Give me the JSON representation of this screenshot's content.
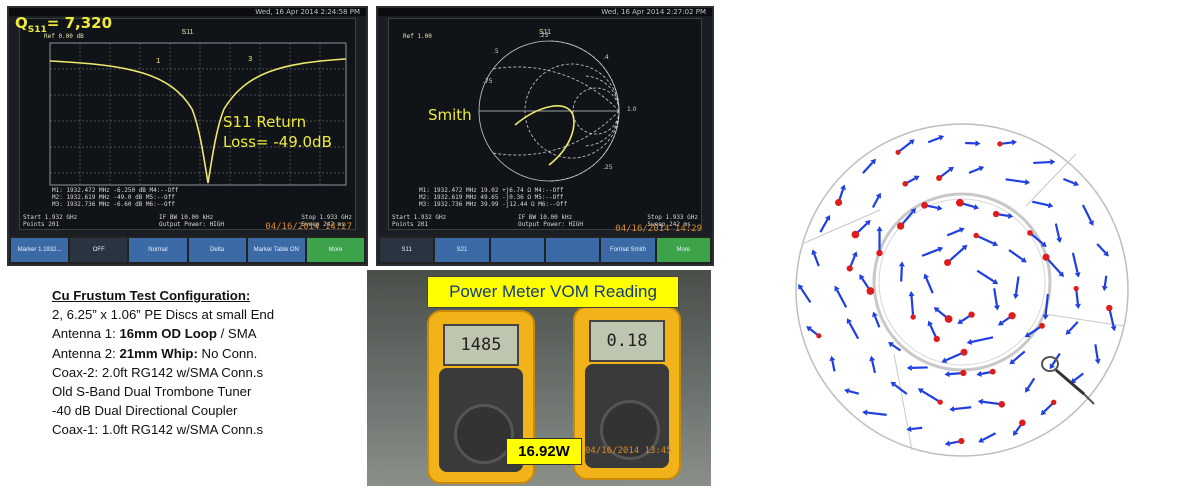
{
  "panel_s11": {
    "q_label": "Q",
    "q_sub": "S11",
    "q_value": "= 7,320",
    "trace_title": "S11",
    "status": "Wed, 16 Apr 2014 2:24:58 PM",
    "ref": "Ref 0.00 dB",
    "return_loss_line1": "S11 Return",
    "return_loss_line2": "Loss= -49.0dB",
    "markers": [
      "M1:  1932.472 MHz  -6.250 dB   M4:--Off",
      "M2:  1932.619 MHz  -49.0 dB    M5:--Off",
      "M3:  1932.736 MHz  -6.60 dB    M6:--Off"
    ],
    "footer_left": "Start 1.932 GHz\nPoints 201",
    "footer_mid": "IF BW 10.00 kHz\nOutput Power: HIGH",
    "footer_right": "Stop 1.933 GHz\nSweep 242 ms",
    "timestamp": "04/16/2014  14:27",
    "softkeys": [
      "Marker 1.1932...",
      "OFF",
      "Normal",
      "Delta",
      "Marker Table ON OFF",
      "More"
    ]
  },
  "panel_smith": {
    "trace_title": "S11",
    "status": "Wed, 16 Apr 2014 2:27:02 PM",
    "ref": "Ref 1.00",
    "label": "Smith",
    "markers": [
      "M1:  1932.472 MHz  19.02 +j6.74 Ω   M4:--Off",
      "M2:  1932.619 MHz  49.65 -j0.36 Ω   M5:--Off",
      "M3:  1932.736 MHz  39.99 -j12.44 Ω  M6:--Off"
    ],
    "footer_left": "Start 1.932 GHz\nPoints 201",
    "footer_mid": "IF BW 10.00 kHz\nOutput Power: HIGH",
    "footer_right": "Stop 1.933 GHz\nSweep 242 ms",
    "timestamp": "04/16/2014  14:29",
    "softkeys": [
      "S11",
      "S21",
      "",
      "",
      "Format Smith",
      "More"
    ]
  },
  "config": {
    "title": "Cu  Frustum Test Configuration:",
    "line1": "2, 6.25” x 1.06” PE Discs at small End",
    "line2_prefix": "Antenna 1: ",
    "line2_bold": "16mm OD Loop",
    "line2_suffix": "  / SMA",
    "line3_prefix": "Antenna 2: ",
    "line3_bold": "21mm Whip:",
    "line3_suffix": " No Conn.",
    "line4": "Coax-2: 2.0ft RG142 w/SMA Conn.s",
    "line5": "Old S-Band Dual Trombone Tuner",
    "line6": "-40 dB Dual Directional Coupler",
    "line7": "Coax-1: 1.0ft RG142 w/SMA Conn.s"
  },
  "power_meter": {
    "banner": "Power Meter VOM Reading",
    "meter1_reading": "1485",
    "meter2_reading": "0.18",
    "watts": "16.92W",
    "timestamp": "04/16/2014  13:45"
  },
  "field_plot": {
    "arrow_color": "#1f3fe0",
    "dot_color": "#e01b1b",
    "outline_color": "#bdbdbd"
  }
}
